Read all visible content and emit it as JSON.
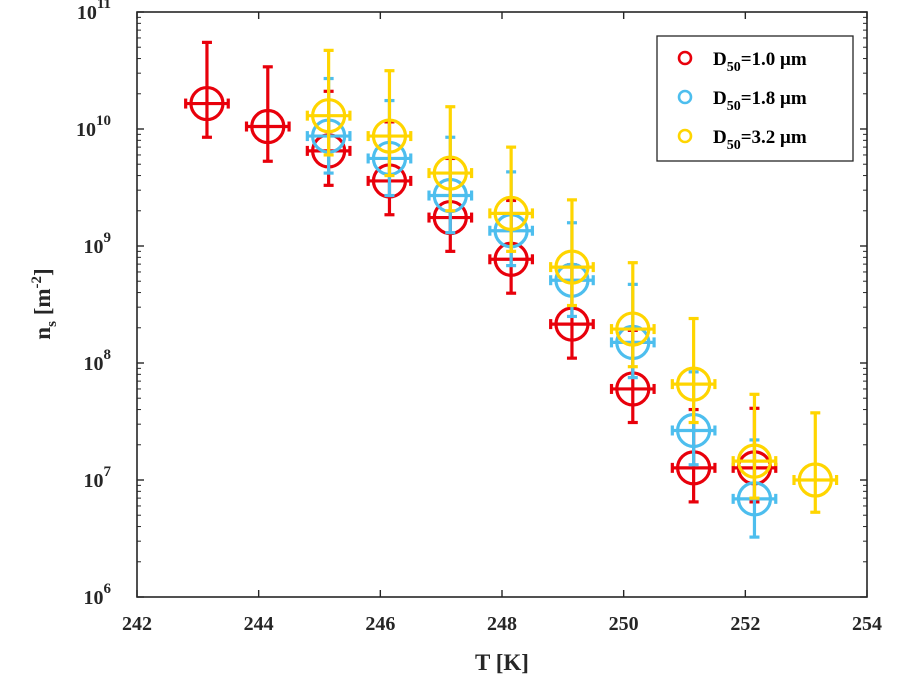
{
  "chart_data": {
    "type": "scatter",
    "xlabel": "T [K]",
    "ylabel": {
      "base": "n",
      "sub": "s",
      "unit_open": " [m",
      "unit_sup": "-2",
      "unit_close": "]"
    },
    "xlim": [
      242,
      254
    ],
    "ylim": [
      1000000,
      100000000000
    ],
    "yscale": "log",
    "grid": false,
    "legend_position": "top-right",
    "x_ticks": [
      {
        "value": 242,
        "label": "242"
      },
      {
        "value": 244,
        "label": "244"
      },
      {
        "value": 246,
        "label": "246"
      },
      {
        "value": 248,
        "label": "248"
      },
      {
        "value": 250,
        "label": "250"
      },
      {
        "value": 252,
        "label": "252"
      },
      {
        "value": 254,
        "label": "254"
      }
    ],
    "y_ticks": [
      {
        "value": 1000000,
        "base": "10",
        "exp": "6"
      },
      {
        "value": 10000000,
        "base": "10",
        "exp": "7"
      },
      {
        "value": 100000000,
        "base": "10",
        "exp": "8"
      },
      {
        "value": 1000000000,
        "base": "10",
        "exp": "9"
      },
      {
        "value": 10000000000,
        "base": "10",
        "exp": "10"
      },
      {
        "value": 100000000000,
        "base": "10",
        "exp": "11"
      }
    ],
    "series": [
      {
        "name": "D50=1.0 μm",
        "label_base": "D",
        "label_sub": "50",
        "label_rest": "=1.0 μm",
        "color": "#e8000b",
        "points": [
          {
            "x": 243.15,
            "y": 16500000000,
            "ylo": 8500000000,
            "yhi": 55000000000,
            "xerr": 0.35
          },
          {
            "x": 244.15,
            "y": 10500000000,
            "ylo": 5300000000,
            "yhi": 34000000000,
            "xerr": 0.35
          },
          {
            "x": 245.15,
            "y": 6500000000,
            "ylo": 3300000000,
            "yhi": 21000000000,
            "xerr": 0.35
          },
          {
            "x": 246.15,
            "y": 3600000000,
            "ylo": 1850000000,
            "yhi": 11500000000,
            "xerr": 0.35
          },
          {
            "x": 247.15,
            "y": 1750000000,
            "ylo": 900000000,
            "yhi": 5600000000,
            "xerr": 0.35
          },
          {
            "x": 248.15,
            "y": 770000000,
            "ylo": 395000000,
            "yhi": 2450000000,
            "xerr": 0.35
          },
          {
            "x": 249.15,
            "y": 215000000,
            "ylo": 110000000,
            "yhi": 690000000,
            "xerr": 0.35
          },
          {
            "x": 250.15,
            "y": 60000000,
            "ylo": 31000000,
            "yhi": 190000000,
            "xerr": 0.35
          },
          {
            "x": 251.15,
            "y": 12700000,
            "ylo": 6500000,
            "yhi": 40000000,
            "xerr": 0.35
          },
          {
            "x": 252.15,
            "y": 12700000,
            "ylo": 6500000,
            "yhi": 41000000,
            "xerr": 0.35
          }
        ]
      },
      {
        "name": "D50=1.8 μm",
        "label_base": "D",
        "label_sub": "50",
        "label_rest": "=1.8 μm",
        "color": "#4dbeee",
        "points": [
          {
            "x": 245.15,
            "y": 8700000000,
            "ylo": 4200000000,
            "yhi": 27000000000,
            "xerr": 0.35
          },
          {
            "x": 246.15,
            "y": 5600000000,
            "ylo": 2700000000,
            "yhi": 17500000000,
            "xerr": 0.35
          },
          {
            "x": 247.15,
            "y": 2700000000,
            "ylo": 1300000000,
            "yhi": 8500000000,
            "xerr": 0.35
          },
          {
            "x": 248.15,
            "y": 1350000000,
            "ylo": 680000000,
            "yhi": 4300000000,
            "xerr": 0.35
          },
          {
            "x": 249.15,
            "y": 510000000,
            "ylo": 250000000,
            "yhi": 1580000000,
            "xerr": 0.35
          },
          {
            "x": 250.15,
            "y": 150000000,
            "ylo": 75000000,
            "yhi": 470000000,
            "xerr": 0.35
          },
          {
            "x": 251.15,
            "y": 26500000,
            "ylo": 13500000,
            "yhi": 84000000,
            "xerr": 0.35
          },
          {
            "x": 252.15,
            "y": 6900000,
            "ylo": 3250000,
            "yhi": 22000000,
            "xerr": 0.35
          }
        ]
      },
      {
        "name": "D50=3.2 μm",
        "label_base": "D",
        "label_sub": "50",
        "label_rest": "=3.2 μm",
        "color": "#ffd500",
        "points": [
          {
            "x": 245.15,
            "y": 13000000000,
            "ylo": 6000000000,
            "yhi": 47000000000,
            "xerr": 0.35
          },
          {
            "x": 246.15,
            "y": 8700000000,
            "ylo": 4000000000,
            "yhi": 31500000000,
            "xerr": 0.35
          },
          {
            "x": 247.15,
            "y": 4200000000,
            "ylo": 2000000000,
            "yhi": 15500000000,
            "xerr": 0.35
          },
          {
            "x": 248.15,
            "y": 1900000000,
            "ylo": 900000000,
            "yhi": 7000000000,
            "xerr": 0.35
          },
          {
            "x": 249.15,
            "y": 660000000,
            "ylo": 310000000,
            "yhi": 2480000000,
            "xerr": 0.35
          },
          {
            "x": 250.15,
            "y": 195000000,
            "ylo": 93000000,
            "yhi": 720000000,
            "xerr": 0.35
          },
          {
            "x": 251.15,
            "y": 66000000,
            "ylo": 31000000,
            "yhi": 240000000,
            "xerr": 0.35
          },
          {
            "x": 252.15,
            "y": 14500000,
            "ylo": 7000000,
            "yhi": 54000000,
            "xerr": 0.35
          },
          {
            "x": 253.15,
            "y": 10000000,
            "ylo": 5300000,
            "yhi": 37500000,
            "xerr": 0.35
          }
        ]
      }
    ]
  }
}
